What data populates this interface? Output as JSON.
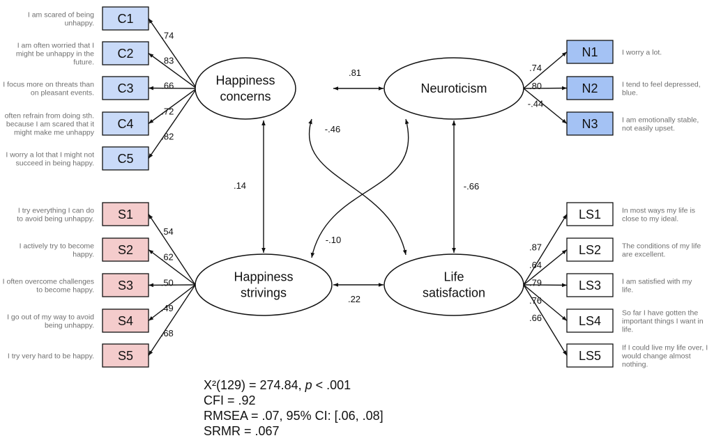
{
  "colors": {
    "concern_fill": "#c9daf8",
    "neuro_fill": "#a4c2f4",
    "striving_fill": "#f4cccc",
    "ls_fill": "#ffffff",
    "line": "#111111"
  },
  "factors": {
    "happiness_concerns": [
      "Happiness",
      "concerns"
    ],
    "neuroticism": [
      "Neuroticism"
    ],
    "happiness_strivings": [
      "Happiness",
      "strivings"
    ],
    "life_satisfaction": [
      "Life",
      "satisfaction"
    ]
  },
  "concerns_items": [
    {
      "label": "C1",
      "loading": ".74",
      "text": [
        "I am scared of being",
        "unhappy."
      ]
    },
    {
      "label": "C2",
      "loading": ".83",
      "text": [
        "I am often worried that I",
        "might be unhappy in the",
        "future."
      ]
    },
    {
      "label": "C3",
      "loading": ".66",
      "text": [
        "I focus more on threats than",
        "on pleasant events."
      ]
    },
    {
      "label": "C4",
      "loading": ".72",
      "text": [
        "often refrain from doing sth.",
        "because I am scared that it",
        "might make me unhappy"
      ]
    },
    {
      "label": "C5",
      "loading": ".82",
      "text": [
        "I worry a lot that I might not",
        "succeed in being happy."
      ]
    }
  ],
  "neuro_items": [
    {
      "label": "N1",
      "loading": ".74",
      "text": [
        "I worry a lot."
      ]
    },
    {
      "label": "N2",
      "loading": ".80",
      "text": [
        "I tend to feel depressed,",
        "blue."
      ]
    },
    {
      "label": "N3",
      "loading": "-.44",
      "text": [
        "I am emotionally stable,",
        "not easily upset."
      ]
    }
  ],
  "strivings_items": [
    {
      "label": "S1",
      "loading": ".54",
      "text": [
        "I try everything I can do",
        "to avoid being unhappy."
      ]
    },
    {
      "label": "S2",
      "loading": ".62",
      "text": [
        "I actively try to become",
        "happy."
      ]
    },
    {
      "label": "S3",
      "loading": ".50",
      "text": [
        "I often overcome challenges",
        "to become happy."
      ]
    },
    {
      "label": "S4",
      "loading": ".49",
      "text": [
        "I go out of my way to avoid",
        "being unhappy."
      ]
    },
    {
      "label": "S5",
      "loading": ".68",
      "text": [
        "I try very hard to be happy."
      ]
    }
  ],
  "ls_items": [
    {
      "label": "LS1",
      "loading": ".87",
      "text": [
        "In most ways my life is",
        "close to my ideal."
      ]
    },
    {
      "label": "LS2",
      "loading": ".64",
      "text": [
        "The conditions of my life",
        "are excellent."
      ]
    },
    {
      "label": "LS3",
      "loading": ".79",
      "text": [
        "I am satisfied with my",
        "life."
      ]
    },
    {
      "label": "LS4",
      "loading": ".76",
      "text": [
        "So far I have gotten the",
        "important things I want in",
        "life."
      ]
    },
    {
      "label": "LS5",
      "loading": ".66",
      "text": [
        "If I could live my life over, I",
        "would change almost",
        "nothing."
      ]
    }
  ],
  "correlations": {
    "concerns_neuroticism": ".81",
    "concerns_life_satisfaction": "-.46",
    "concerns_strivings": ".14",
    "strivings_neuroticism": "-.10",
    "neuroticism_life_satisfaction": "-.66",
    "strivings_life_satisfaction": ".22"
  },
  "fit": {
    "chi_prefix": "X²(129) = 274.84, ",
    "p_symbol": "p",
    "p_suffix": " < .001",
    "cfi": "CFI = .92",
    "rmsea": "RMSEA = .07, 95% CI: [.06, .08]",
    "srmr": "SRMR = .067"
  }
}
